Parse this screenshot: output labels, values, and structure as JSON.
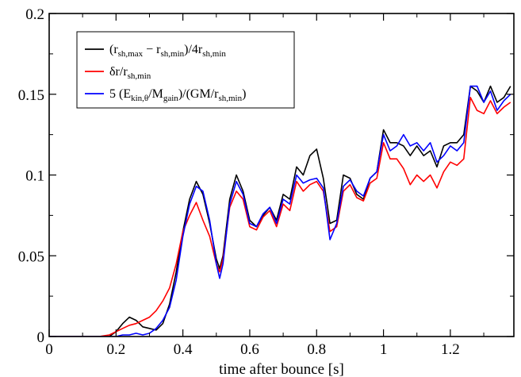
{
  "chart_data": {
    "type": "line",
    "xlabel": "time after bounce [s]",
    "ylabel": "",
    "xlim": [
      0,
      1.39
    ],
    "ylim": [
      0,
      0.2
    ],
    "xticks": [
      0,
      0.2,
      0.4,
      0.6,
      0.8,
      1,
      1.2
    ],
    "xtick_labels": [
      "0",
      "0.2",
      "0.4",
      "0.6",
      "0.8",
      "1",
      "1.2"
    ],
    "yticks": [
      0,
      0.05,
      0.1,
      0.15,
      0.2
    ],
    "ytick_labels": [
      "0",
      "0.05",
      "0.1",
      "0.15",
      "0.2"
    ],
    "grid": false,
    "legend_position": "top-left",
    "series": [
      {
        "name": "(rsh,max − rsh,min)/4rsh,min",
        "color": "#000000",
        "x": [
          0,
          0.18,
          0.2,
          0.22,
          0.24,
          0.26,
          0.28,
          0.3,
          0.32,
          0.34,
          0.36,
          0.38,
          0.4,
          0.42,
          0.44,
          0.46,
          0.48,
          0.5,
          0.51,
          0.52,
          0.54,
          0.56,
          0.58,
          0.6,
          0.62,
          0.64,
          0.66,
          0.68,
          0.7,
          0.72,
          0.74,
          0.76,
          0.78,
          0.8,
          0.82,
          0.84,
          0.86,
          0.88,
          0.9,
          0.92,
          0.94,
          0.96,
          0.98,
          1.0,
          1.02,
          1.04,
          1.06,
          1.08,
          1.1,
          1.12,
          1.14,
          1.16,
          1.18,
          1.2,
          1.22,
          1.24,
          1.26,
          1.28,
          1.3,
          1.32,
          1.34,
          1.36,
          1.38
        ],
        "y": [
          0,
          0,
          0.003,
          0.008,
          0.012,
          0.01,
          0.006,
          0.005,
          0.004,
          0.008,
          0.02,
          0.04,
          0.065,
          0.085,
          0.096,
          0.088,
          0.07,
          0.048,
          0.042,
          0.05,
          0.085,
          0.1,
          0.09,
          0.072,
          0.068,
          0.075,
          0.08,
          0.072,
          0.088,
          0.085,
          0.105,
          0.1,
          0.112,
          0.116,
          0.098,
          0.07,
          0.072,
          0.1,
          0.098,
          0.088,
          0.085,
          0.098,
          0.102,
          0.128,
          0.12,
          0.12,
          0.118,
          0.112,
          0.118,
          0.112,
          0.115,
          0.105,
          0.118,
          0.12,
          0.12,
          0.125,
          0.155,
          0.152,
          0.145,
          0.155,
          0.145,
          0.148,
          0.155
        ]
      },
      {
        "name": "δr/rsh,min",
        "color": "#ff0000",
        "x": [
          0,
          0.15,
          0.18,
          0.2,
          0.22,
          0.24,
          0.26,
          0.28,
          0.3,
          0.32,
          0.34,
          0.36,
          0.38,
          0.4,
          0.42,
          0.44,
          0.46,
          0.48,
          0.5,
          0.51,
          0.52,
          0.54,
          0.56,
          0.58,
          0.6,
          0.62,
          0.64,
          0.66,
          0.68,
          0.7,
          0.72,
          0.74,
          0.76,
          0.78,
          0.8,
          0.82,
          0.84,
          0.86,
          0.88,
          0.9,
          0.92,
          0.94,
          0.96,
          0.98,
          1.0,
          1.02,
          1.04,
          1.06,
          1.08,
          1.1,
          1.12,
          1.14,
          1.16,
          1.18,
          1.2,
          1.22,
          1.24,
          1.26,
          1.28,
          1.3,
          1.32,
          1.34,
          1.36,
          1.38
        ],
        "y": [
          0,
          0,
          0.001,
          0.003,
          0.005,
          0.007,
          0.008,
          0.01,
          0.012,
          0.016,
          0.022,
          0.03,
          0.045,
          0.065,
          0.075,
          0.083,
          0.072,
          0.062,
          0.045,
          0.04,
          0.048,
          0.08,
          0.09,
          0.085,
          0.068,
          0.066,
          0.074,
          0.078,
          0.068,
          0.082,
          0.078,
          0.096,
          0.09,
          0.094,
          0.096,
          0.09,
          0.065,
          0.068,
          0.09,
          0.094,
          0.086,
          0.084,
          0.095,
          0.098,
          0.12,
          0.11,
          0.11,
          0.104,
          0.094,
          0.1,
          0.096,
          0.1,
          0.092,
          0.102,
          0.108,
          0.106,
          0.11,
          0.148,
          0.14,
          0.138,
          0.146,
          0.138,
          0.142,
          0.145
        ]
      },
      {
        "name": "5 (Ekin,θ/Mgain)/(GM/rsh,min)",
        "color": "#0000ff",
        "x": [
          0,
          0.2,
          0.22,
          0.24,
          0.26,
          0.28,
          0.3,
          0.32,
          0.34,
          0.36,
          0.38,
          0.4,
          0.42,
          0.44,
          0.46,
          0.48,
          0.5,
          0.51,
          0.52,
          0.54,
          0.56,
          0.58,
          0.6,
          0.62,
          0.64,
          0.66,
          0.68,
          0.7,
          0.72,
          0.74,
          0.76,
          0.78,
          0.8,
          0.82,
          0.84,
          0.86,
          0.88,
          0.9,
          0.92,
          0.94,
          0.96,
          0.98,
          1.0,
          1.02,
          1.04,
          1.06,
          1.08,
          1.1,
          1.12,
          1.14,
          1.16,
          1.18,
          1.2,
          1.22,
          1.24,
          1.26,
          1.28,
          1.3,
          1.32,
          1.34,
          1.36,
          1.38
        ],
        "y": [
          0,
          0,
          0.001,
          0.001,
          0.002,
          0.001,
          0.002,
          0.005,
          0.01,
          0.018,
          0.035,
          0.062,
          0.082,
          0.093,
          0.09,
          0.072,
          0.045,
          0.036,
          0.045,
          0.082,
          0.096,
          0.088,
          0.07,
          0.068,
          0.076,
          0.08,
          0.07,
          0.085,
          0.082,
          0.1,
          0.095,
          0.097,
          0.098,
          0.092,
          0.06,
          0.07,
          0.093,
          0.097,
          0.09,
          0.087,
          0.098,
          0.102,
          0.125,
          0.115,
          0.118,
          0.125,
          0.118,
          0.12,
          0.115,
          0.12,
          0.108,
          0.112,
          0.118,
          0.115,
          0.12,
          0.155,
          0.155,
          0.145,
          0.152,
          0.14,
          0.146,
          0.15
        ]
      }
    ]
  },
  "legend": {
    "entries": [
      {
        "parts": [
          [
            "(r",
            ""
          ],
          [
            "sh,max",
            "sub"
          ],
          [
            " − r",
            ""
          ],
          [
            "sh,min",
            "sub"
          ],
          [
            ")/4r",
            ""
          ],
          [
            "sh,min",
            "sub"
          ]
        ],
        "color": "#000000"
      },
      {
        "parts": [
          [
            "δr/r",
            ""
          ],
          [
            "sh,min",
            "sub"
          ]
        ],
        "color": "#ff0000"
      },
      {
        "parts": [
          [
            "5 (E",
            ""
          ],
          [
            "kin,θ",
            "sub"
          ],
          [
            "/M",
            ""
          ],
          [
            "gain",
            "sub"
          ],
          [
            ")/(GM/r",
            ""
          ],
          [
            "sh,min",
            "sub"
          ],
          [
            ")",
            ""
          ]
        ],
        "color": "#0000ff"
      }
    ]
  }
}
